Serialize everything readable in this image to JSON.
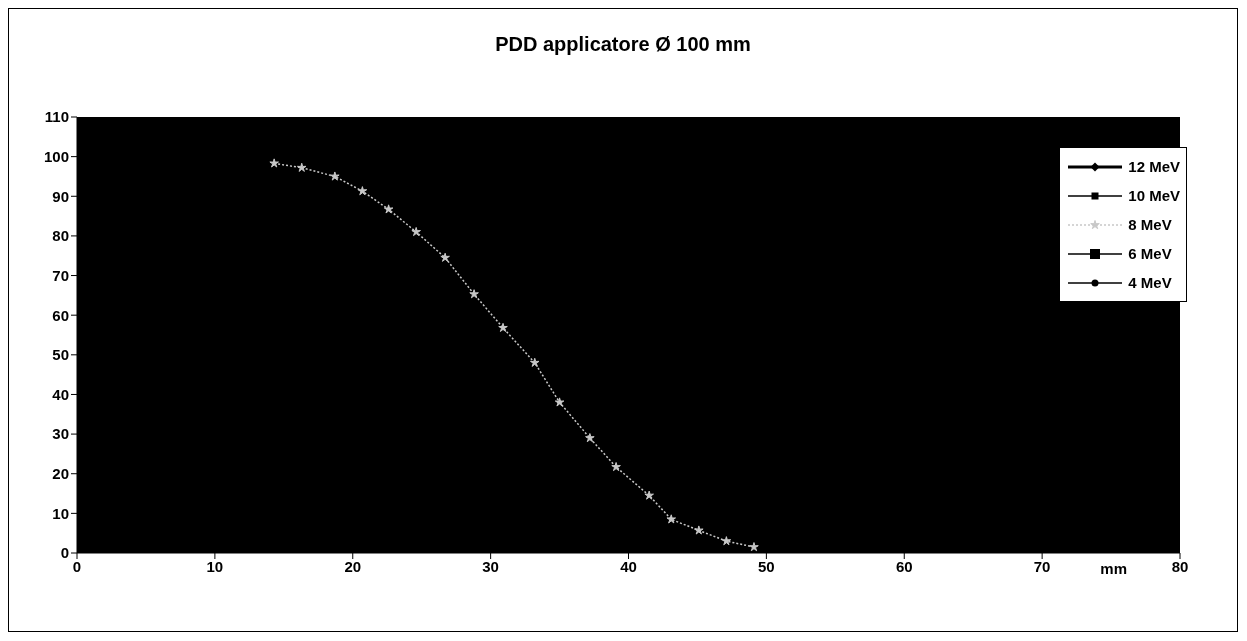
{
  "chart_data": {
    "type": "line",
    "title": "PDD applicatore Ø 100 mm",
    "xlabel": "mm",
    "xlim": [
      0,
      80
    ],
    "xticks": [
      0,
      10,
      20,
      30,
      40,
      50,
      60,
      70,
      80
    ],
    "ylim": [
      0,
      110
    ],
    "yticks": [
      0,
      10,
      20,
      30,
      40,
      50,
      60,
      70,
      80,
      90,
      100,
      110
    ],
    "grid": false,
    "legend": "top right",
    "series": [
      {
        "name": "12 MeV",
        "color": "#000000",
        "marker": "diamond",
        "line_style": "solid"
      },
      {
        "name": "10 MeV",
        "color": "#000000",
        "marker": "square",
        "line_style": "solid"
      },
      {
        "name": "8 MeV",
        "color": "#c8c8c8",
        "marker": "star",
        "line_style": "dotted",
        "x": [
          14.3,
          16.3,
          18.7,
          20.7,
          22.6,
          24.6,
          26.7,
          28.8,
          30.9,
          33.2,
          35,
          37.2,
          39.1,
          41.5,
          43.1,
          45.1,
          47.1,
          49.1
        ],
        "values": [
          98.3,
          97.2,
          95,
          91.3,
          86.7,
          81,
          74.5,
          65.3,
          56.8,
          48,
          38,
          29,
          21.7,
          14.5,
          8.5,
          5.7,
          3,
          1.5
        ]
      },
      {
        "name": "6 MeV",
        "color": "#000000",
        "marker": "square",
        "line_style": "solid"
      },
      {
        "name": "4 MeV",
        "color": "#000000",
        "marker": "circle",
        "line_style": "solid"
      }
    ]
  }
}
